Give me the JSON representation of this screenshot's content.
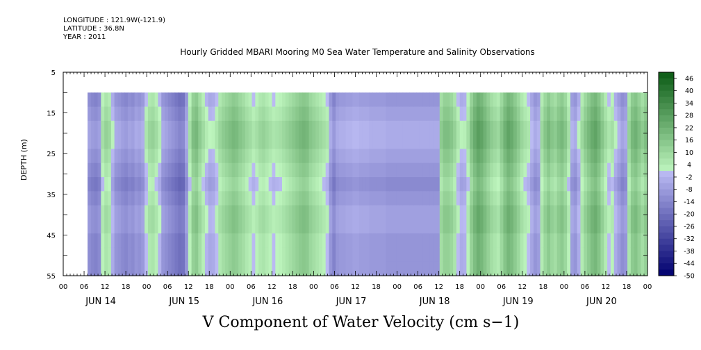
{
  "header": {
    "longitude": "LONGITUDE : 121.9W(-121.9)",
    "latitude": "LATITUDE : 36.8N",
    "year": "YEAR : 2011"
  },
  "chart_data": {
    "type": "heatmap",
    "title": "Hourly Gridded MBARI Mooring M0 Sea Water Temperature and Salinity Observations",
    "xlabel": "V Component of Water Velocity (cm s−1)",
    "ylabel": "DEPTH (m)",
    "y_ticks": [
      "5",
      "15",
      "25",
      "35",
      "45",
      "55"
    ],
    "y_range": [
      5,
      55
    ],
    "y_inverted": true,
    "data_depth_range": [
      10,
      55
    ],
    "x_hour_ticks": [
      "00",
      "06",
      "12",
      "18",
      "00",
      "06",
      "12",
      "18",
      "00",
      "06",
      "12",
      "18",
      "00",
      "06",
      "12",
      "18",
      "00",
      "06",
      "12",
      "18",
      "00",
      "06",
      "12",
      "18",
      "00",
      "06",
      "12",
      "18",
      "00"
    ],
    "x_day_labels": [
      "JUN 14",
      "JUN 15",
      "JUN 16",
      "JUN 17",
      "JUN 18",
      "JUN 19",
      "JUN 20"
    ],
    "data_start_hour": 7,
    "data_end_hour": 168,
    "colorbar_ticks": [
      46,
      40,
      34,
      28,
      22,
      16,
      10,
      4,
      -2,
      -8,
      -14,
      -20,
      -26,
      -32,
      -38,
      -44,
      -50
    ],
    "colorbar_range": [
      -50,
      49
    ],
    "column_values": [
      -12,
      -14,
      -15,
      -13,
      2,
      6,
      4,
      -4,
      -10,
      -11,
      -13,
      -14,
      -12,
      -13,
      -10,
      -11,
      -9,
      0,
      5,
      6,
      3,
      -2,
      -10,
      -12,
      -14,
      -16,
      -18,
      -20,
      -19,
      -10,
      2,
      12,
      14,
      8,
      3,
      -2,
      -5,
      -4,
      0,
      5,
      8,
      10,
      12,
      14,
      13,
      10,
      8,
      5,
      3,
      0,
      2,
      5,
      6,
      4,
      2,
      0,
      1,
      2,
      4,
      6,
      8,
      10,
      12,
      14,
      15,
      14,
      10,
      8,
      6,
      4,
      2,
      0,
      -10,
      -15,
      -10,
      -9,
      -9,
      -8,
      -8,
      -7,
      -7,
      -8,
      -8,
      -8,
      -9,
      -9,
      -9,
      -9,
      -9,
      -10,
      -10,
      -10,
      -10,
      -10,
      -10,
      -10,
      -10,
      -10,
      -10,
      -10,
      -10,
      -10,
      -10,
      -10,
      -10,
      8,
      12,
      12,
      10,
      6,
      0,
      -4,
      -3,
      2,
      12,
      18,
      22,
      20,
      16,
      12,
      8,
      6,
      4,
      10,
      16,
      20,
      18,
      14,
      10,
      5,
      2,
      0,
      -6,
      -10,
      -8,
      4,
      10,
      14,
      10,
      8,
      12,
      14,
      10,
      2,
      -8,
      -10,
      -4,
      4,
      10,
      14,
      18,
      20,
      16,
      10,
      4,
      0,
      2,
      -4,
      -8,
      -12,
      -10,
      6,
      14,
      16,
      12,
      8,
      12
    ],
    "depth_gradient": [
      0,
      1,
      2,
      2,
      1,
      0,
      -1,
      0,
      1,
      1,
      0,
      0,
      0
    ]
  }
}
